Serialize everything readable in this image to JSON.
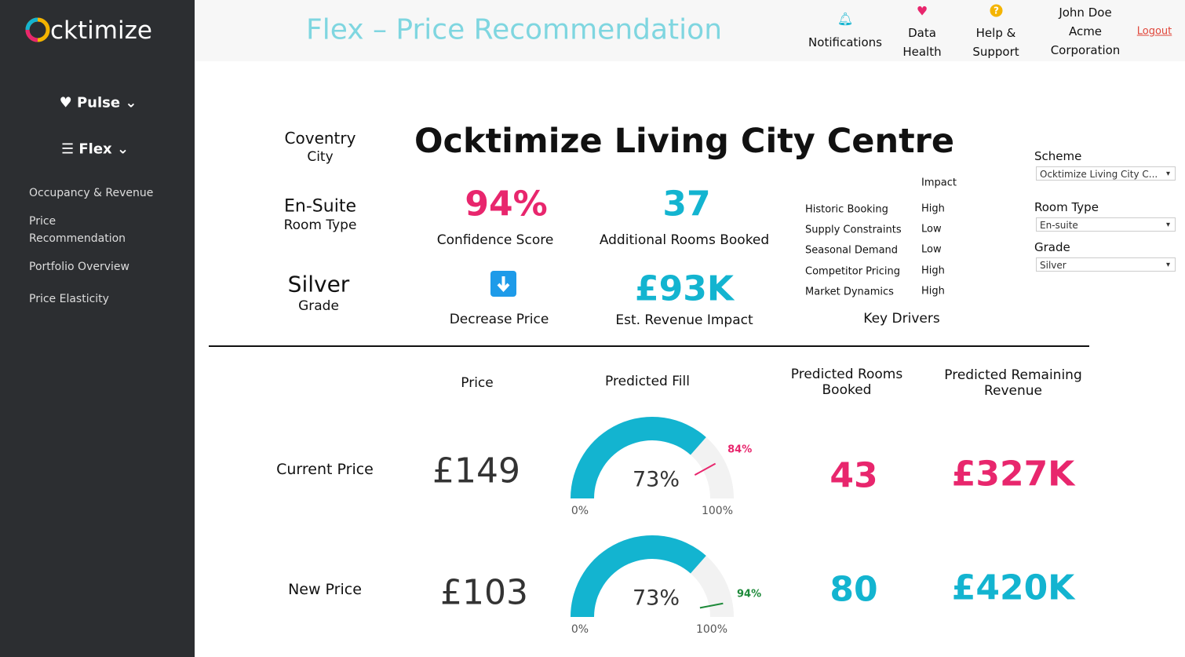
{
  "sidebar": {
    "logo_text": "cktimize",
    "menu": [
      "Pulse",
      "Flex"
    ],
    "links": [
      "Occupancy & Revenue",
      "Price Recommendation",
      "Portfolio Overview",
      "Price Elasticity"
    ]
  },
  "header": {
    "title": "Flex – Price Recommendation",
    "nav": [
      "Notifications",
      "Data Health",
      "Help & Support"
    ],
    "user": [
      "John Doe",
      "Acme Corporation"
    ],
    "logout": "Logout"
  },
  "summary": {
    "city": "Coventry",
    "city_label": "City",
    "room_type": "En-Suite",
    "room_type_label": "Room Type",
    "grade": "Silver",
    "grade_label": "Grade",
    "scheme_name": "Ocktimize Living City Centre",
    "kpis": [
      {
        "value": "94%",
        "label": "Confidence Score"
      },
      {
        "value": "37",
        "label": "Additional Rooms Booked"
      },
      {
        "label": "Decrease Price"
      },
      {
        "value": "£93K",
        "label": "Est. Revenue Impact"
      }
    ]
  },
  "drivers": {
    "header": "Impact",
    "rows": [
      [
        "Historic Booking",
        "High"
      ],
      [
        "Supply Constraints",
        "Low"
      ],
      [
        "Seasonal Demand",
        "Low"
      ],
      [
        "Competitor Pricing",
        "High"
      ],
      [
        "Market Dynamics",
        "High"
      ]
    ],
    "title": "Key Drivers"
  },
  "filters": [
    {
      "label": "Scheme",
      "value": "Ocktimize Living City C..."
    },
    {
      "label": "Room Type",
      "value": "En-suite"
    },
    {
      "label": "Grade",
      "value": "Silver"
    }
  ],
  "table": {
    "headers": [
      "Price",
      "Predicted Fill",
      "Predicted Rooms Booked",
      "Predicted Remaining Revenue"
    ],
    "rows": [
      {
        "label": "Current Price",
        "price": "£149",
        "rooms": "43",
        "revenue": "£327K",
        "fill": {
          "value": 73,
          "value_label": "73%",
          "target": 84,
          "target_label": "84%",
          "min": 0,
          "min_label": "0%",
          "max": 100,
          "max_label": "100%",
          "color": "#13b4d0",
          "target_color": "#e8266d"
        }
      },
      {
        "label": "New Price",
        "price": "£103",
        "rooms": "80",
        "revenue": "£420K",
        "fill": {
          "value": 73,
          "value_label": "73%",
          "target": 94,
          "target_label": "94%",
          "min": 0,
          "min_label": "0%",
          "max": 100,
          "max_label": "100%",
          "color": "#13b4d0",
          "target_color": "#1e8a3a"
        }
      }
    ]
  }
}
